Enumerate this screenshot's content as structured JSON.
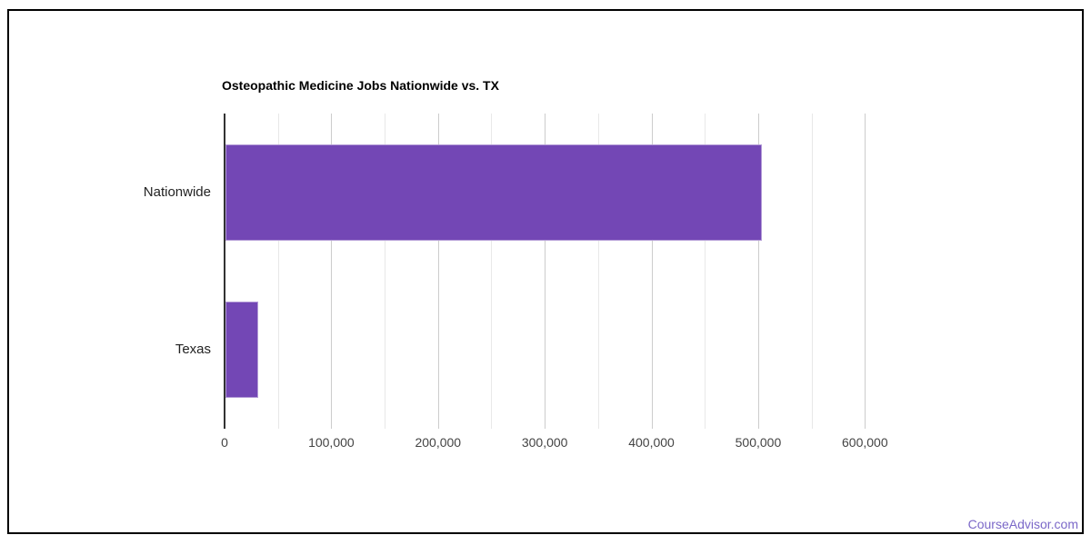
{
  "page": {
    "background_color": "#ffffff",
    "border_color": "#000000",
    "footer_link": "CourseAdvisor.com",
    "footer_link_color": "#7b68c8"
  },
  "chart_data": {
    "type": "bar",
    "orientation": "horizontal",
    "title": "Osteopathic Medicine Jobs Nationwide vs. TX",
    "categories": [
      "Nationwide",
      "Texas"
    ],
    "values": [
      503000,
      31000
    ],
    "xlabel": "",
    "ylabel": "",
    "xlim": [
      0,
      650000
    ],
    "grid": true,
    "legend": "none",
    "bar_color": "#7347b5",
    "major_gridline_color": "#cccccc",
    "minor_gridline_color": "#e8e8e8",
    "axis_line_color": "#333333",
    "ticks": [
      {
        "value": 0,
        "label": "0",
        "major": true
      },
      {
        "value": 50000,
        "label": "",
        "major": false
      },
      {
        "value": 100000,
        "label": "100,000",
        "major": true
      },
      {
        "value": 150000,
        "label": "",
        "major": false
      },
      {
        "value": 200000,
        "label": "200,000",
        "major": true
      },
      {
        "value": 250000,
        "label": "",
        "major": false
      },
      {
        "value": 300000,
        "label": "300,000",
        "major": true
      },
      {
        "value": 350000,
        "label": "",
        "major": false
      },
      {
        "value": 400000,
        "label": "400,000",
        "major": true
      },
      {
        "value": 450000,
        "label": "",
        "major": false
      },
      {
        "value": 500000,
        "label": "500,000",
        "major": true
      },
      {
        "value": 550000,
        "label": "",
        "major": false
      },
      {
        "value": 600000,
        "label": "600,000",
        "major": true
      }
    ]
  }
}
